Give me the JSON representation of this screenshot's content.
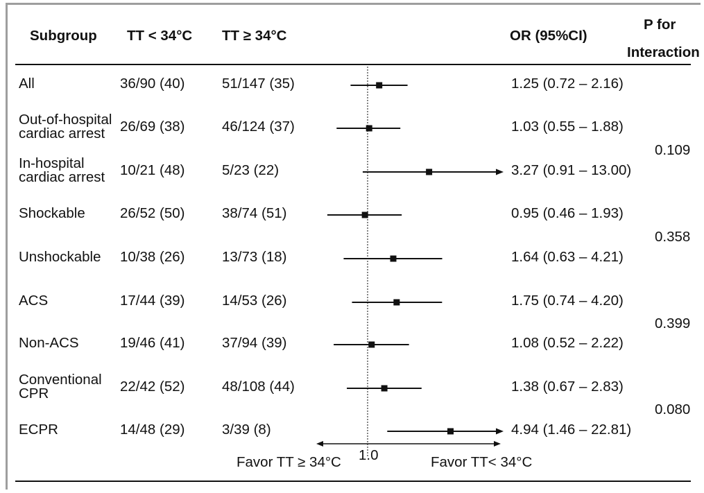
{
  "chart_data": {
    "type": "forest",
    "headers": {
      "subgroup": "Subgroup",
      "group_a": "TT < 34°C",
      "group_b": "TT ≥ 34°C",
      "or": "OR (95%CI)",
      "p_line1": "P for",
      "p_line2": "Interaction"
    },
    "rows": [
      {
        "label_lines": [
          "All"
        ],
        "a": "36/90 (40)",
        "b": "51/147 (35)",
        "or_text": "1.25 (0.72 – 2.16)",
        "or": 1.25,
        "lo": 0.72,
        "hi": 2.16
      },
      {
        "label_lines": [
          "Out-of-hospital",
          "cardiac arrest"
        ],
        "a": "26/69 (38)",
        "b": "46/124 (37)",
        "or_text": "1.03 (0.55 – 1.88)",
        "or": 1.03,
        "lo": 0.55,
        "hi": 1.88
      },
      {
        "label_lines": [
          "In-hospital",
          "cardiac arrest"
        ],
        "a": "10/21 (48)",
        "b": "5/23 (22)",
        "or_text": "3.27 (0.91 – 13.00)",
        "or": 3.27,
        "lo": 0.91,
        "hi": 13.0,
        "arrow_right": true
      },
      {
        "label_lines": [
          "Shockable"
        ],
        "a": "26/52 (50)",
        "b": "38/74 (51)",
        "or_text": "0.95 (0.46 – 1.93)",
        "or": 0.95,
        "lo": 0.46,
        "hi": 1.93
      },
      {
        "label_lines": [
          "Unshockable"
        ],
        "a": "10/38 (26)",
        "b": "13/73 (18)",
        "or_text": "1.64 (0.63 – 4.21)",
        "or": 1.64,
        "lo": 0.63,
        "hi": 4.21
      },
      {
        "label_lines": [
          "ACS"
        ],
        "a": "17/44 (39)",
        "b": "14/53 (26)",
        "or_text": "1.75 (0.74 – 4.20)",
        "or": 1.75,
        "lo": 0.74,
        "hi": 4.2
      },
      {
        "label_lines": [
          "Non-ACS"
        ],
        "a": "19/46 (41)",
        "b": "37/94 (39)",
        "or_text": "1.08 (0.52 – 2.22)",
        "or": 1.08,
        "lo": 0.52,
        "hi": 2.22
      },
      {
        "label_lines": [
          "Conventional",
          "CPR"
        ],
        "a": "22/42 (52)",
        "b": "48/108 (44)",
        "or_text": "1.38 (0.67 – 2.83)",
        "or": 1.38,
        "lo": 0.67,
        "hi": 2.83
      },
      {
        "label_lines": [
          "ECPR"
        ],
        "a": "14/48 (29)",
        "b": "3/39 (8)",
        "or_text": "4.94 (1.46 – 22.81)",
        "or": 4.94,
        "lo": 1.46,
        "hi": 22.81,
        "arrow_right": true
      }
    ],
    "interactions": [
      {
        "rows": [
          1,
          2
        ],
        "p": "0.109"
      },
      {
        "rows": [
          3,
          4
        ],
        "p": "0.358"
      },
      {
        "rows": [
          5,
          6
        ],
        "p": "0.399"
      },
      {
        "rows": [
          7,
          8
        ],
        "p": "0.080"
      }
    ],
    "reference_value": 1.0,
    "reference_label": "1.0",
    "favor_left": "Favor TT ≥ 34°C",
    "favor_right": "Favor TT< 34°C",
    "x_scale": "log",
    "reference_line_style": "dotted"
  }
}
